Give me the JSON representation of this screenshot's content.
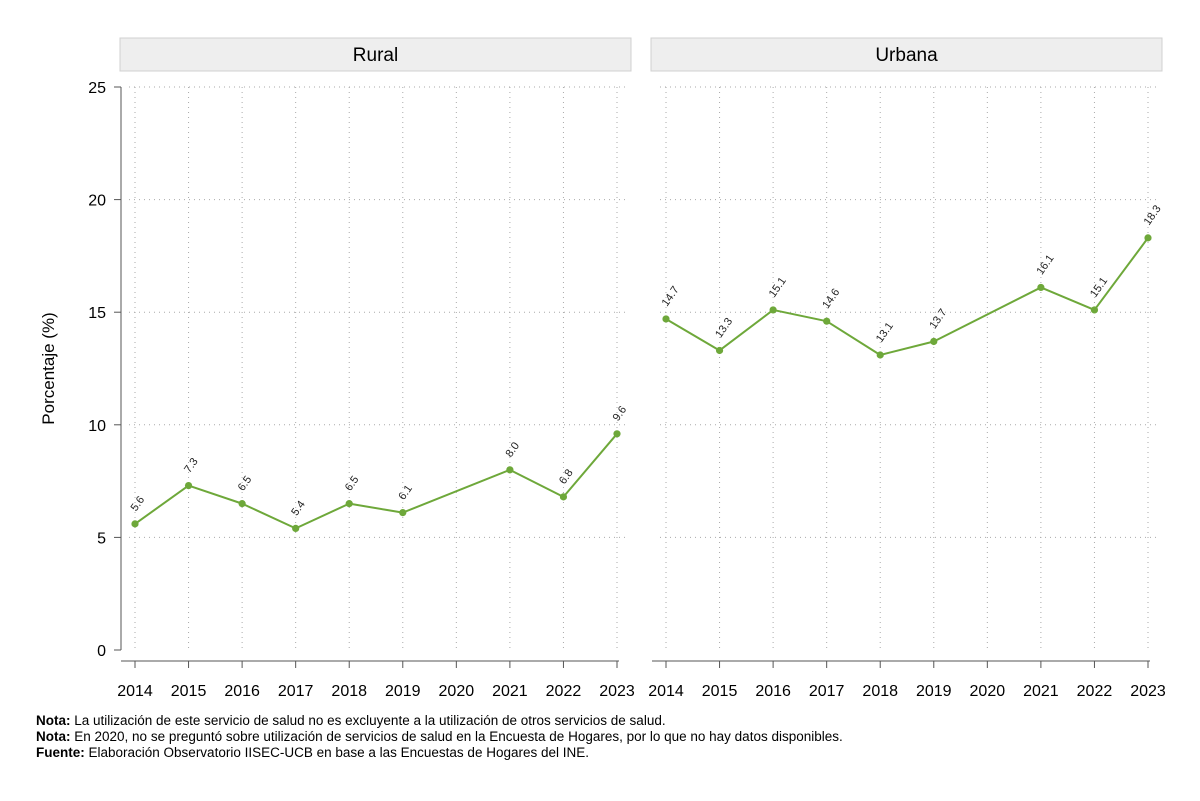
{
  "chart_data": {
    "type": "line",
    "ylabel": "Porcentaje (%)",
    "ylim": [
      0,
      25
    ],
    "yticks": [
      0,
      5,
      10,
      15,
      20,
      25
    ],
    "x": [
      "2014",
      "2015",
      "2016",
      "2017",
      "2018",
      "2019",
      "2020",
      "2021",
      "2022",
      "2023"
    ],
    "grid": "dotted",
    "line_color": "#6ea83a",
    "panels": [
      {
        "title": "Rural",
        "values": [
          5.6,
          7.3,
          6.5,
          5.4,
          6.5,
          6.1,
          null,
          8.0,
          6.8,
          9.6
        ],
        "labels": [
          "5.6",
          "7.3",
          "6.5",
          "5.4",
          "6.5",
          "6.1",
          "",
          "8.0",
          "6.8",
          "9.6"
        ]
      },
      {
        "title": "Urbana",
        "values": [
          14.7,
          13.3,
          15.1,
          14.6,
          13.1,
          13.7,
          null,
          16.1,
          15.1,
          18.3
        ],
        "labels": [
          "14.7",
          "13.3",
          "15.1",
          "14.6",
          "13.1",
          "13.7",
          "",
          "16.1",
          "15.1",
          "18.3"
        ]
      }
    ]
  },
  "notes": [
    {
      "label": "Nota:",
      "text": " La utilización de este servicio de salud no es excluyente a la utilización de otros servicios de salud."
    },
    {
      "label": "Nota:",
      "text": " En 2020, no se preguntó sobre utilización de servicios de salud en la Encuesta de Hogares, por lo que no hay datos disponibles."
    },
    {
      "label": "Fuente:",
      "text": " Elaboración Observatorio IISEC-UCB en base a las Encuestas de Hogares del INE."
    }
  ]
}
